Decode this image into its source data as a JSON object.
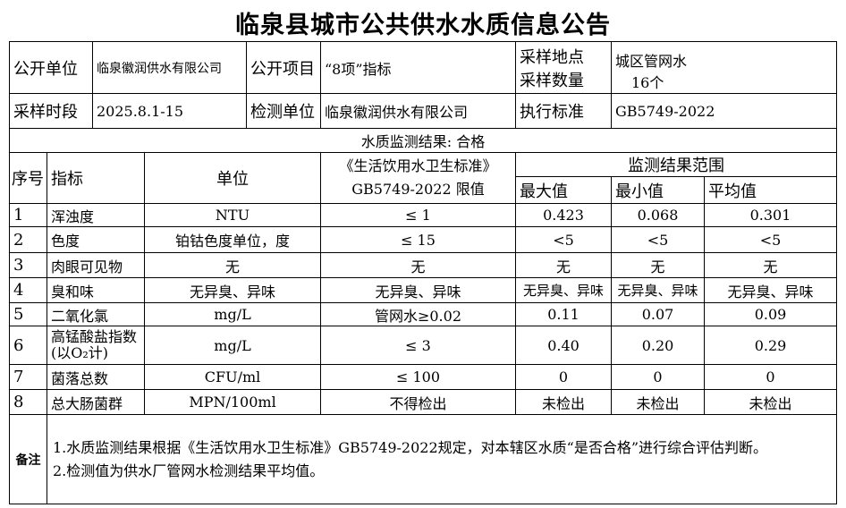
{
  "title": "临泉县城市公共供水水质信息公告",
  "info": {
    "publisher_label": "公开单位",
    "publisher": "临泉徽润供水有限公司",
    "item_label": "公开项目",
    "item": "“8项”指标",
    "site_label": "采样地点",
    "count_label": "采样数量",
    "site": "城区管网水",
    "count": "16个",
    "period_label": "采样时段",
    "period": "2025.8.1-15",
    "lab_label": "检测单位",
    "lab": "临泉徽润供水有限公司",
    "std_label": "执行标准",
    "std": "GB5749-2022"
  },
  "result": "水质监测结果: 合格",
  "headers": {
    "no": "序号",
    "indicator": "指标",
    "unit": "单位",
    "limit1": "《生活饮用水卫生标准》",
    "limit2": "GB5749-2022 限值",
    "range": "监测结果范围",
    "max": "最大值",
    "min": "最小值",
    "avg": "平均值"
  },
  "rows": [
    {
      "no": "1",
      "name": "浑浊度",
      "unit": "NTU",
      "limit": "≤ 1",
      "max": "0.423",
      "min": "0.068",
      "avg": "0.301"
    },
    {
      "no": "2",
      "name": "色度",
      "unit": "铂钴色度单位，度",
      "limit": "≤ 15",
      "max": "<5",
      "min": "<5",
      "avg": "<5"
    },
    {
      "no": "3",
      "name": "肉眼可见物",
      "unit": "无",
      "limit": "无",
      "max": "无",
      "min": "无",
      "avg": "无"
    },
    {
      "no": "4",
      "name": "臭和味",
      "unit": "无异臭、异味",
      "limit": "无异臭、异味",
      "max": "无异臭、异味",
      "min": "无异臭、异味",
      "avg": "无异臭、异味"
    },
    {
      "no": "5",
      "name": "二氧化氯",
      "unit": "mg/L",
      "limit": "管网水≥0.02",
      "max": "0.11",
      "min": "0.07",
      "avg": "0.09"
    },
    {
      "no": "6",
      "name": "高锰酸盐指数(以O₂计)",
      "unit": "mg/L",
      "limit": "≤ 3",
      "max": "0.40",
      "min": "0.20",
      "avg": "0.29"
    },
    {
      "no": "7",
      "name": "菌落总数",
      "unit": "CFU/ml",
      "limit": "≤ 100",
      "max": "0",
      "min": "0",
      "avg": "0"
    },
    {
      "no": "8",
      "name": "总大肠菌群",
      "unit": "MPN/100ml",
      "limit": "不得检出",
      "max": "未检出",
      "min": "未检出",
      "avg": "未检出"
    }
  ],
  "notes": {
    "label": "备注",
    "line1": "1.水质监测结果根据《生活饮用水卫生标准》GB5749-2022规定，对本辖区水质“是否合格”进行综合评估判断。",
    "line2": "2.检测值为供水厂管网水检测结果平均值。"
  }
}
